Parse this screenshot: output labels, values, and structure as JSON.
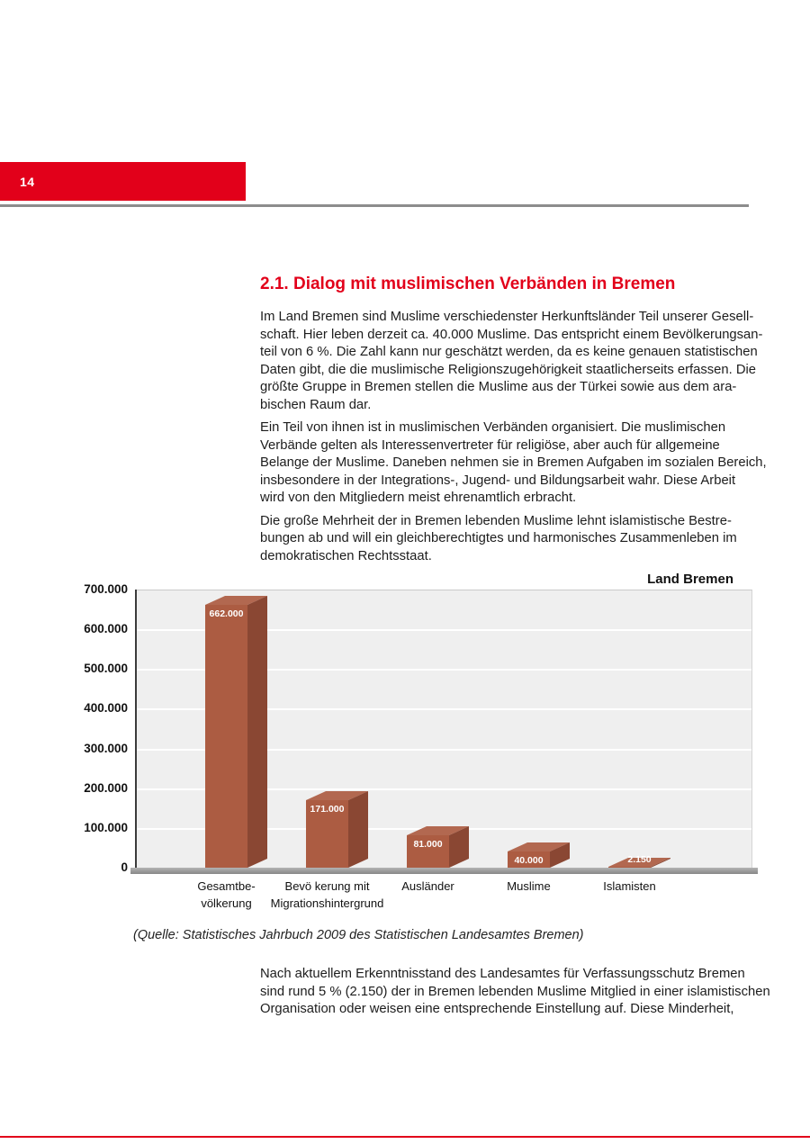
{
  "page": {
    "number": "14"
  },
  "colors": {
    "accent_red": "#e2001a",
    "rule_gray": "#8c8c8c",
    "text": "#1d1d1d"
  },
  "section": {
    "title": "2.1. Dialog mit muslimischen Verbänden in Bremen",
    "paragraphs": [
      "Im Land Bremen sind Muslime verschiedenster Herkunftsländer Teil unserer Gesell-\nschaft. Hier leben derzeit ca. 40.000 Muslime. Das entspricht einem Bevölkerungsan-\nteil von 6 %. Die Zahl kann nur geschätzt werden, da es keine genauen statistischen\nDaten gibt, die die muslimische Religionszugehörigkeit staatlicherseits erfassen. Die\ngrößte Gruppe in Bremen stellen die Muslime aus der Türkei sowie aus dem ara-\nbischen Raum dar.",
      "Ein Teil von ihnen ist in muslimischen Verbänden organisiert. Die muslimischen\nVerbände gelten als Interessenvertreter für religiöse, aber auch für allgemeine\nBelange der Muslime. Daneben nehmen sie in Bremen Aufgaben im sozialen Bereich,\ninsbesondere in der Integrations-, Jugend- und Bildungsarbeit wahr. Diese Arbeit\nwird von den Mitgliedern meist ehrenamtlich erbracht.",
      "Die große Mehrheit der in Bremen lebenden Muslime lehnt islamistische Bestre-\nbungen ab und will ein gleichberechtigtes und harmonisches Zusammenleben im\ndemokratischen Rechtsstaat."
    ]
  },
  "chart_data": {
    "type": "bar",
    "style": "3d-bars",
    "title": "Land Bremen",
    "categories": [
      "Gesamtbe-\nvölkerung",
      "Bevö kerung mit\nMigrationshintergrund",
      "Ausländer",
      "Muslime",
      "Islamisten"
    ],
    "values": [
      662000,
      171000,
      81000,
      40000,
      2150
    ],
    "value_labels": [
      "662.000",
      "171.000",
      "81.000",
      "40.000",
      "2.150"
    ],
    "xlabel": "",
    "ylabel": "",
    "ylim": [
      0,
      700000
    ],
    "ytick_step": 100000,
    "ytick_labels": [
      "0",
      "100.000",
      "200.000",
      "300.000",
      "400.000",
      "500.000",
      "600.000",
      "700.000"
    ],
    "grid": true,
    "legend": null,
    "colors": {
      "bar_front": "#ac5c42",
      "bar_side": "#8a4733",
      "bar_top": "#b26850",
      "plot_bg": "#efefef",
      "gridline": "#ffffff",
      "value_label": "#ffffff"
    }
  },
  "source_note": "(Quelle: Statistisches Jahrbuch 2009 des Statistischen Landesamtes Bremen)",
  "closing_paragraph": "Nach aktuellem Erkenntnisstand des Landesamtes für Verfassungsschutz Bremen\nsind rund 5 % (2.150) der in Bremen lebenden Muslime Mitglied in einer islamistischen\nOrganisation oder weisen eine entsprechende Einstellung auf. Diese Minderheit,"
}
